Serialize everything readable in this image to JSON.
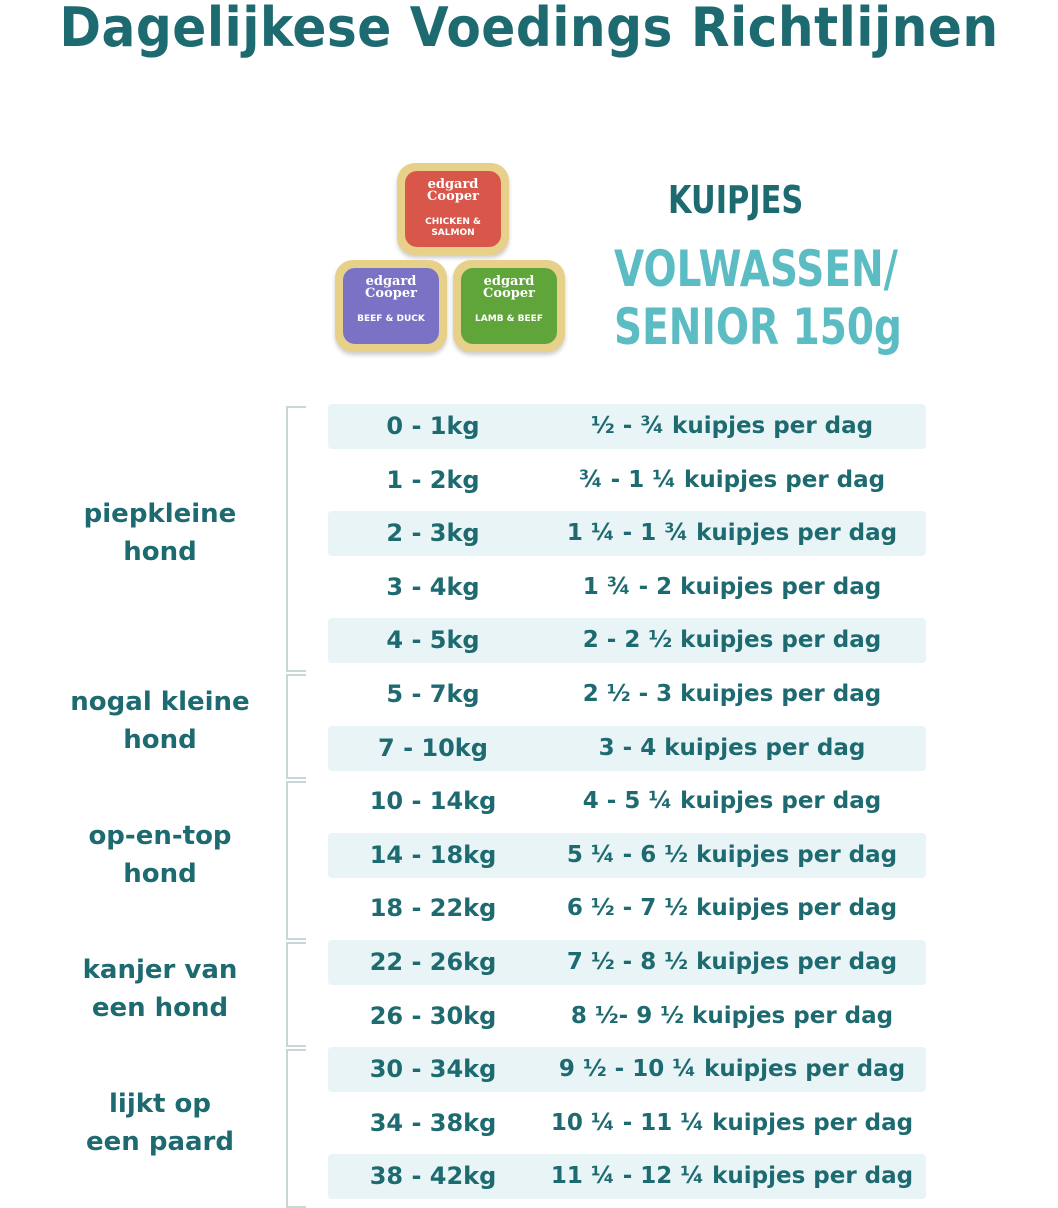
{
  "title": "Dagelijkese Voedings Richtlijnen",
  "product": {
    "type_label": "KUIPJES",
    "subtitle_line1": "VOLWASSEN/",
    "subtitle_line2": "SENIOR 150g",
    "tubs": [
      {
        "brand": "edgard Cooper",
        "flavour": "CHICKEN & SALMON",
        "color": "#d9574a"
      },
      {
        "brand": "edgard Cooper",
        "flavour": "BEEF & DUCK",
        "color": "#7a72c4"
      },
      {
        "brand": "edgard Cooper",
        "flavour": "LAMB & BEEF",
        "color": "#5fa53a"
      }
    ]
  },
  "groups": [
    {
      "label_line1": "piepkleine",
      "label_line2": "hond"
    },
    {
      "label_line1": "nogal kleine",
      "label_line2": "hond"
    },
    {
      "label_line1": "op-en-top",
      "label_line2": "hond"
    },
    {
      "label_line1": "kanjer van",
      "label_line2": "een hond"
    },
    {
      "label_line1": "lijkt op",
      "label_line2": "een paard"
    }
  ],
  "rows": [
    {
      "weight": "0 - 1kg",
      "amount": "½ - ¾ kuipjes per dag"
    },
    {
      "weight": "1 - 2kg",
      "amount": "¾ - 1 ¼ kuipjes per dag"
    },
    {
      "weight": "2 - 3kg",
      "amount": "1 ¼ - 1 ¾ kuipjes per dag"
    },
    {
      "weight": "3 - 4kg",
      "amount": "1 ¾ - 2 kuipjes per dag"
    },
    {
      "weight": "4 - 5kg",
      "amount": "2 - 2 ½ kuipjes per dag"
    },
    {
      "weight": "5 - 7kg",
      "amount": "2 ½ - 3 kuipjes per dag"
    },
    {
      "weight": "7 - 10kg",
      "amount": "3 - 4 kuipjes per dag"
    },
    {
      "weight": "10 - 14kg",
      "amount": "4 - 5 ¼ kuipjes per dag"
    },
    {
      "weight": "14 - 18kg",
      "amount": "5 ¼ - 6 ½ kuipjes per dag"
    },
    {
      "weight": "18 - 22kg",
      "amount": "6 ½ - 7 ½ kuipjes per dag"
    },
    {
      "weight": "22 - 26kg",
      "amount": "7 ½ - 8 ½ kuipjes per dag"
    },
    {
      "weight": "26 - 30kg",
      "amount": "8 ½- 9 ½ kuipjes per dag"
    },
    {
      "weight": "30 - 34kg",
      "amount": "9 ½ - 10 ¼ kuipjes per dag"
    },
    {
      "weight": "34 - 38kg",
      "amount": "10 ¼ - 11 ¼ kuipjes per dag"
    },
    {
      "weight": "38 - 42kg",
      "amount": "11 ¼ - 12 ¼ kuipjes per dag"
    }
  ]
}
